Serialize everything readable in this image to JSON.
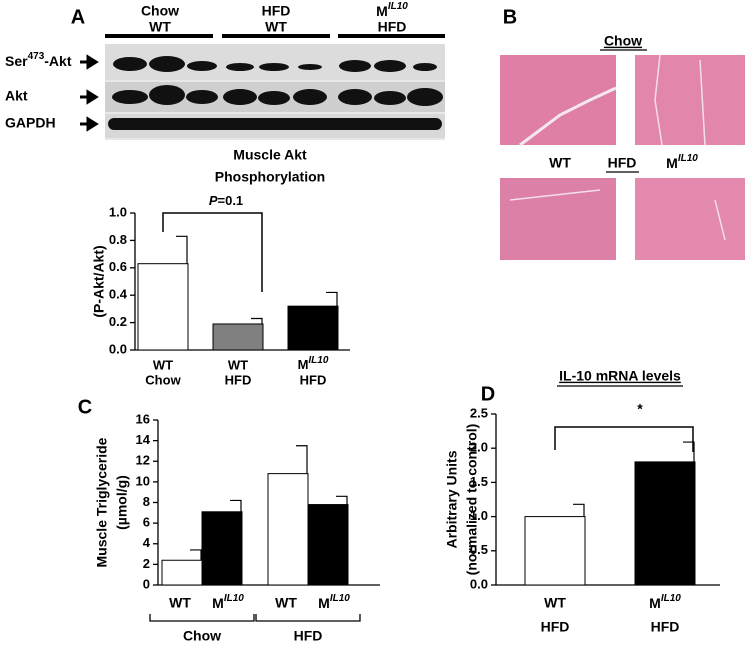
{
  "panel_labels": [
    "A",
    "B",
    "C",
    "D"
  ],
  "blot": {
    "lanes": [
      [
        "Chow",
        "WT"
      ],
      [
        "HFD",
        "WT"
      ],
      [
        [
          "M",
          "IL10"
        ],
        "HFD"
      ]
    ],
    "rows": [
      [
        "Ser",
        "473",
        "-Akt"
      ],
      "Akt",
      "GAPDH"
    ]
  },
  "histology": {
    "top_label": "Chow",
    "bottom_labels": [
      "WT",
      "HFD",
      [
        "M",
        "IL10"
      ]
    ]
  },
  "chart_data": [
    {
      "type": "bar",
      "title": [
        "Muscle Akt",
        "Phosphorylation"
      ],
      "y_label": [
        "(P-Akt/Akt)"
      ],
      "categories": [
        [
          "WT",
          "Chow"
        ],
        [
          "WT",
          "HFD"
        ],
        [
          [
            "M",
            "IL10"
          ],
          "HFD"
        ]
      ],
      "values": [
        0.63,
        0.19,
        0.32
      ],
      "errors": [
        0.2,
        0.04,
        0.1
      ],
      "colors": [
        "#ffffff",
        "#808080",
        "#000000"
      ],
      "ylim": [
        0,
        1
      ],
      "yticks": [
        {
          "value": 0,
          "label": "0.0"
        },
        {
          "value": 0.2,
          "label": "0.2"
        },
        {
          "value": 0.4,
          "label": "0.4"
        },
        {
          "value": 0.6,
          "label": "0.6"
        },
        {
          "value": 0.8,
          "label": "0.8"
        },
        {
          "value": 1,
          "label": "1.0"
        }
      ],
      "annotation": {
        "italic": "P",
        "text": "=0.1"
      }
    },
    {
      "type": "grouped_bar",
      "y_label": [
        "Muscle Triglyceride",
        "(µmol/g)"
      ],
      "groups": [
        "Chow",
        "HFD"
      ],
      "series": [
        {
          "name": "WT",
          "color": "#ffffff",
          "values": [
            2.4,
            10.8
          ],
          "errors": [
            1.0,
            2.7
          ]
        },
        {
          "name": [
            "M",
            "IL10"
          ],
          "color": "#000000",
          "values": [
            7.1,
            7.8
          ],
          "errors": [
            1.1,
            0.8
          ]
        }
      ],
      "ylim": [
        0,
        16
      ],
      "yticks": [
        0,
        2,
        4,
        6,
        8,
        10,
        12,
        14,
        16
      ]
    },
    {
      "type": "bar",
      "title": [
        "IL-10 mRNA levels"
      ],
      "y_label": [
        "Arbitrary Units",
        "(normalized to control)"
      ],
      "categories": [
        [
          "WT",
          "HFD"
        ],
        [
          [
            "M",
            "IL10"
          ],
          "HFD"
        ]
      ],
      "values": [
        1.0,
        1.8
      ],
      "errors": [
        0.18,
        0.29
      ],
      "colors": [
        "#ffffff",
        "#000000"
      ],
      "ylim": [
        0,
        2.5
      ],
      "yticks": [
        {
          "value": 0,
          "label": "0.0"
        },
        {
          "value": 0.5,
          "label": "0.5"
        },
        {
          "value": 1,
          "label": "1.0"
        },
        {
          "value": 1.5,
          "label": "1.5"
        },
        {
          "value": 2,
          "label": "2.0"
        },
        {
          "value": 2.5,
          "label": "2.5"
        }
      ],
      "annotation": "*"
    }
  ]
}
